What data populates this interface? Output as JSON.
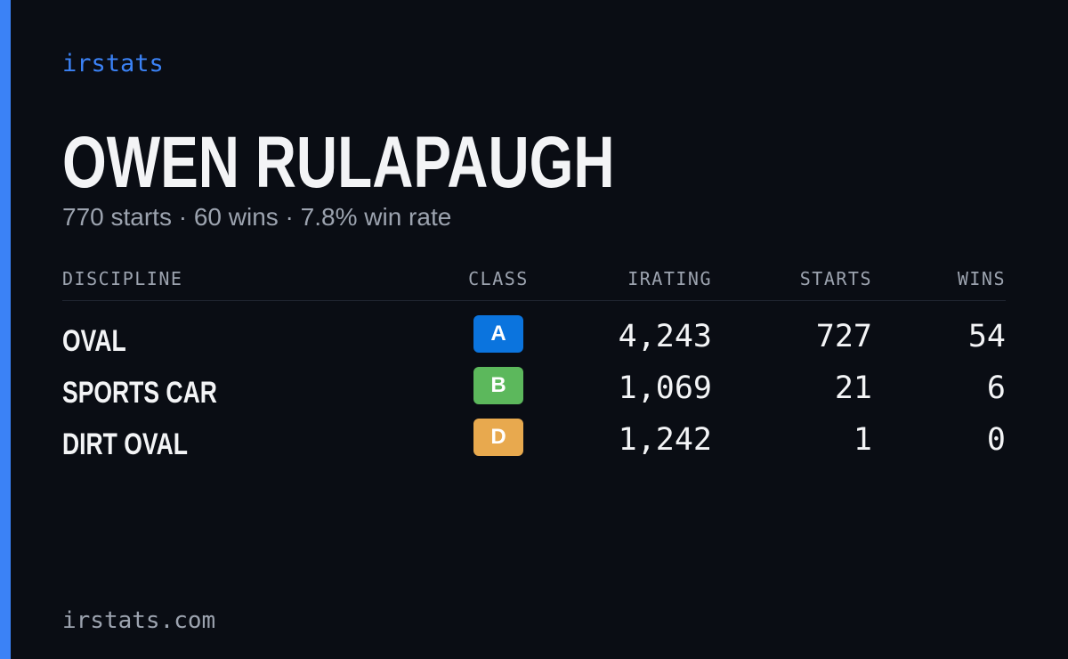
{
  "brand": "irstats",
  "driver": {
    "name": "OWEN RULAPAUGH",
    "summary": "770 starts · 60 wins · 7.8% win rate"
  },
  "table": {
    "headers": [
      "DISCIPLINE",
      "CLASS",
      "IRATING",
      "STARTS",
      "WINS"
    ],
    "rows": [
      {
        "discipline": "OVAL",
        "class": "A",
        "class_color": "#0b74de",
        "irating": "4,243",
        "starts": 727,
        "wins": 54
      },
      {
        "discipline": "SPORTS CAR",
        "class": "B",
        "class_color": "#5cb85c",
        "irating": "1,069",
        "starts": 21,
        "wins": 6
      },
      {
        "discipline": "DIRT OVAL",
        "class": "D",
        "class_color": "#e8a94e",
        "irating": "1,242",
        "starts": 1,
        "wins": 0
      }
    ]
  },
  "footer": "irstats.com"
}
